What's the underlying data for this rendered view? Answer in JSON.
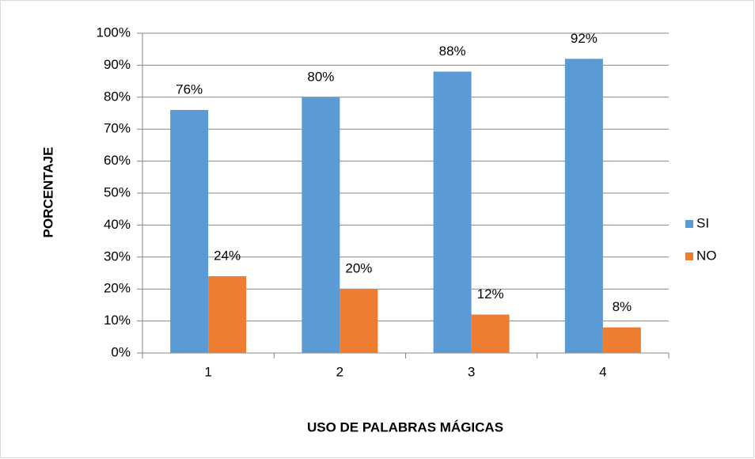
{
  "chart_data": {
    "type": "bar",
    "categories": [
      "1",
      "2",
      "3",
      "4"
    ],
    "series": [
      {
        "name": "SI",
        "color": "#5b9bd5",
        "values": [
          76,
          80,
          88,
          92
        ],
        "value_labels": [
          "76%",
          "80%",
          "88%",
          "92%"
        ]
      },
      {
        "name": "NO",
        "color": "#ed7d31",
        "values": [
          24,
          20,
          12,
          8
        ],
        "value_labels": [
          "24%",
          "20%",
          "12%",
          "8%"
        ]
      }
    ],
    "xlabel": "USO DE PALABRAS MÁGICAS",
    "ylabel": "PORCENTAJE",
    "ylim": [
      0,
      100
    ],
    "yticks": [
      {
        "value": 0,
        "label": "0%"
      },
      {
        "value": 10,
        "label": "10%"
      },
      {
        "value": 20,
        "label": "20%"
      },
      {
        "value": 30,
        "label": "30%"
      },
      {
        "value": 40,
        "label": "40%"
      },
      {
        "value": 50,
        "label": "50%"
      },
      {
        "value": 60,
        "label": "60%"
      },
      {
        "value": 70,
        "label": "70%"
      },
      {
        "value": 80,
        "label": "80%"
      },
      {
        "value": 90,
        "label": "90%"
      },
      {
        "value": 100,
        "label": "100%"
      }
    ],
    "grid": true,
    "legend": "right"
  }
}
